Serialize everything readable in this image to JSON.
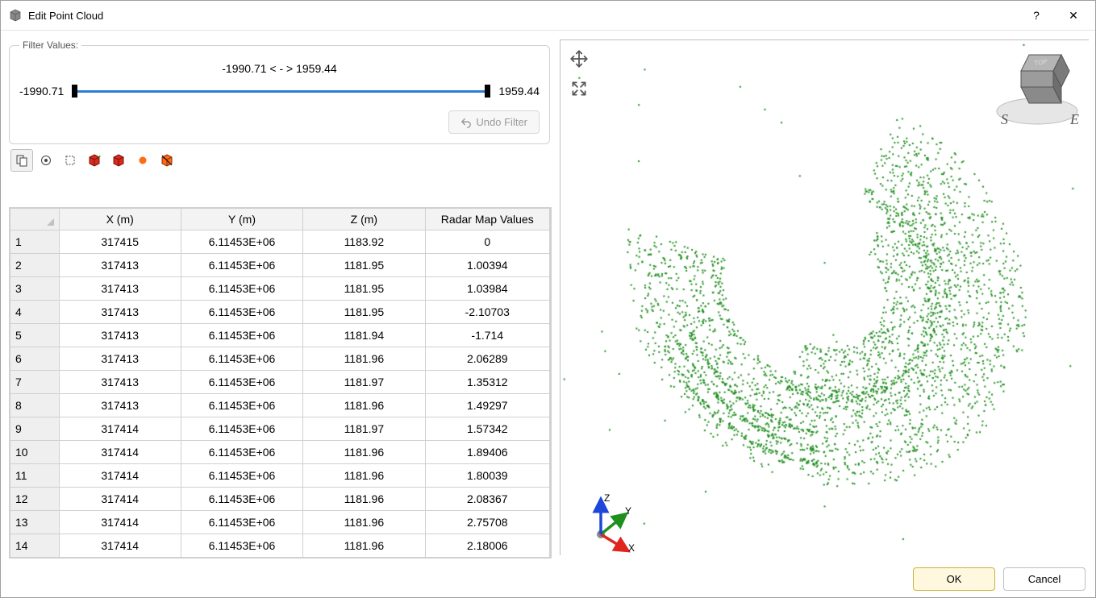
{
  "window": {
    "title": "Edit Point Cloud",
    "help_tooltip": "?",
    "close_tooltip": "✕"
  },
  "filter": {
    "legend": "Filter Values:",
    "min_label": "-1990.71",
    "max_label": "1959.44",
    "range_text": "-1990.71  <  -  >  1959.44",
    "min_value": -1990.71,
    "max_value": 1959.44,
    "undo_label": "Undo Filter",
    "undo_enabled": false,
    "slider_color": "#2d7cd6",
    "handle_left_pct": 0,
    "handle_right_pct": 100
  },
  "toolbar": {
    "items": [
      {
        "name": "copy-icon",
        "svg": "0",
        "selected": true
      },
      {
        "name": "select-all-icon",
        "svg": "1",
        "selected": false
      },
      {
        "name": "deselect-icon",
        "svg": "2",
        "selected": false
      },
      {
        "name": "add-box-icon",
        "svg": "3",
        "selected": false
      },
      {
        "name": "remove-box-icon",
        "svg": "4",
        "selected": false
      },
      {
        "name": "point-icon",
        "svg": "5",
        "selected": false
      },
      {
        "name": "polygon-icon",
        "svg": "6",
        "selected": false
      }
    ]
  },
  "table": {
    "columns": [
      "X (m)",
      "Y (m)",
      "Z (m)",
      "Radar Map Values"
    ],
    "rows": [
      [
        "317415",
        "6.11453E+06",
        "1183.92",
        "0"
      ],
      [
        "317413",
        "6.11453E+06",
        "1181.95",
        "1.00394"
      ],
      [
        "317413",
        "6.11453E+06",
        "1181.95",
        "1.03984"
      ],
      [
        "317413",
        "6.11453E+06",
        "1181.95",
        "-2.10703"
      ],
      [
        "317413",
        "6.11453E+06",
        "1181.94",
        "-1.714"
      ],
      [
        "317413",
        "6.11453E+06",
        "1181.96",
        "2.06289"
      ],
      [
        "317413",
        "6.11453E+06",
        "1181.97",
        "1.35312"
      ],
      [
        "317413",
        "6.11453E+06",
        "1181.96",
        "1.49297"
      ],
      [
        "317414",
        "6.11453E+06",
        "1181.97",
        "1.57342"
      ],
      [
        "317414",
        "6.11453E+06",
        "1181.96",
        "1.89406"
      ],
      [
        "317414",
        "6.11453E+06",
        "1181.96",
        "1.80039"
      ],
      [
        "317414",
        "6.11453E+06",
        "1181.96",
        "2.08367"
      ],
      [
        "317414",
        "6.11453E+06",
        "1181.96",
        "2.75708"
      ],
      [
        "317414",
        "6.11453E+06",
        "1181.96",
        "2.18006"
      ]
    ],
    "scrollbar": {
      "thumb_top_pct": 5,
      "thumb_height_pct": 6
    }
  },
  "view3d": {
    "point_color": "#1f8f1f",
    "background_color": "#ffffff",
    "axes": {
      "x_label": "X",
      "x_color": "#e0241e",
      "y_label": "Y",
      "y_color": "#1f8f1f",
      "z_label": "Z",
      "z_color": "#1e46d8"
    },
    "compass": {
      "s_label": "S",
      "e_label": "E",
      "cube_color": "#7d7d7d",
      "disk_color": "#e0e0e0"
    },
    "n_points": 2200,
    "seed": 42
  },
  "buttons": {
    "ok": "OK",
    "cancel": "Cancel"
  }
}
